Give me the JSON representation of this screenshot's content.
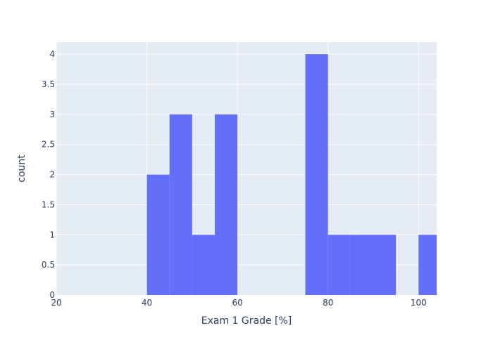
{
  "chart_data": {
    "type": "bar",
    "title": "",
    "xlabel": "Exam 1 Grade [%]",
    "ylabel": "count",
    "xlim": [
      20,
      104
    ],
    "ylim": [
      0,
      4.2
    ],
    "bin_width": 5,
    "bins": [
      {
        "start": 40,
        "end": 45,
        "count": 2
      },
      {
        "start": 45,
        "end": 50,
        "count": 3
      },
      {
        "start": 50,
        "end": 55,
        "count": 1
      },
      {
        "start": 55,
        "end": 60,
        "count": 3
      },
      {
        "start": 60,
        "end": 65,
        "count": 0
      },
      {
        "start": 65,
        "end": 70,
        "count": 0
      },
      {
        "start": 70,
        "end": 75,
        "count": 0
      },
      {
        "start": 75,
        "end": 80,
        "count": 4
      },
      {
        "start": 80,
        "end": 85,
        "count": 1
      },
      {
        "start": 85,
        "end": 90,
        "count": 1
      },
      {
        "start": 90,
        "end": 95,
        "count": 1
      },
      {
        "start": 95,
        "end": 100,
        "count": 0
      },
      {
        "start": 100,
        "end": 105,
        "count": 1
      }
    ],
    "x_ticks": [
      20,
      40,
      60,
      80,
      100
    ],
    "y_ticks": [
      0,
      0.5,
      1,
      1.5,
      2,
      2.5,
      3,
      3.5,
      4
    ],
    "grid": true,
    "colors": {
      "bar": "#636efa",
      "plot_background": "#e5ecf6",
      "gridline": "#ffffff"
    }
  }
}
